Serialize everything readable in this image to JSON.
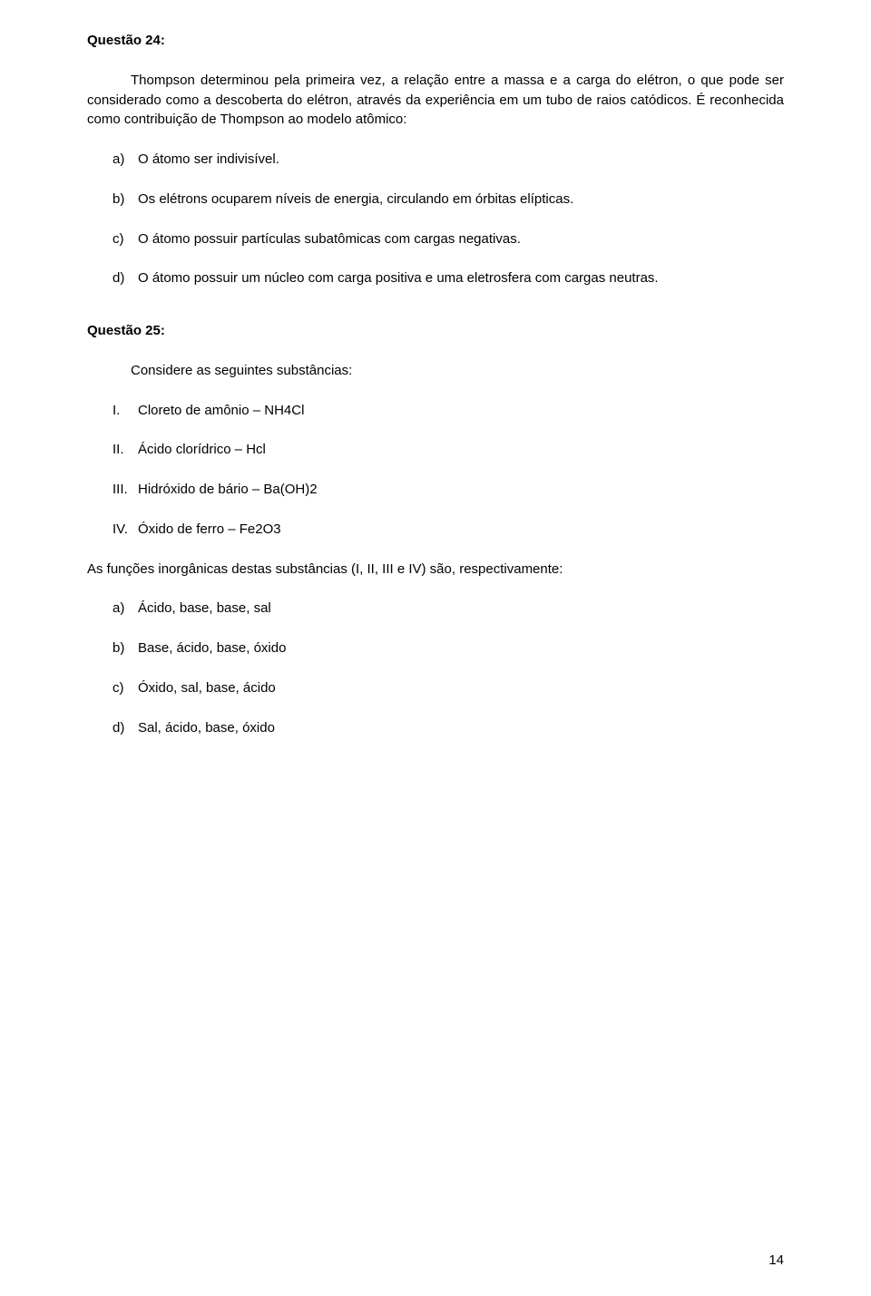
{
  "page": {
    "number": "14"
  },
  "q24": {
    "title": "Questão 24:",
    "paragraph": "Thompson determinou pela primeira vez, a relação entre a massa e a carga do elétron, o que pode ser considerado como a descoberta do elétron, através da experiência em um tubo de raios catódicos. É reconhecida como contribuição de Thompson ao modelo atômico:",
    "options": [
      {
        "letter": "a)",
        "text": "O átomo ser indivisível."
      },
      {
        "letter": "b)",
        "text": "Os elétrons ocuparem níveis de energia, circulando em órbitas elípticas."
      },
      {
        "letter": "c)",
        "text": "O átomo possuir partículas subatômicas com cargas negativas."
      },
      {
        "letter": "d)",
        "text": "O átomo possuir um núcleo com carga positiva e uma eletrosfera com cargas neutras."
      }
    ]
  },
  "q25": {
    "title": "Questão 25:",
    "intro": "Considere as seguintes substâncias:",
    "items": [
      {
        "num": "I.",
        "text": "Cloreto de amônio – NH4Cl"
      },
      {
        "num": "II.",
        "text": "Ácido clorídrico – Hcl"
      },
      {
        "num": "III.",
        "text": "Hidróxido de bário – Ba(OH)2"
      },
      {
        "num": "IV.",
        "text": "Óxido de ferro – Fe2O3"
      }
    ],
    "lead": "As funções inorgânicas destas substâncias (I, II, III e IV) são, respectivamente:",
    "options": [
      {
        "letter": "a)",
        "text": "Ácido, base, base, sal"
      },
      {
        "letter": "b)",
        "text": "Base, ácido, base, óxido"
      },
      {
        "letter": "c)",
        "text": "Óxido, sal, base, ácido"
      },
      {
        "letter": "d)",
        "text": "Sal, ácido, base, óxido"
      }
    ]
  }
}
